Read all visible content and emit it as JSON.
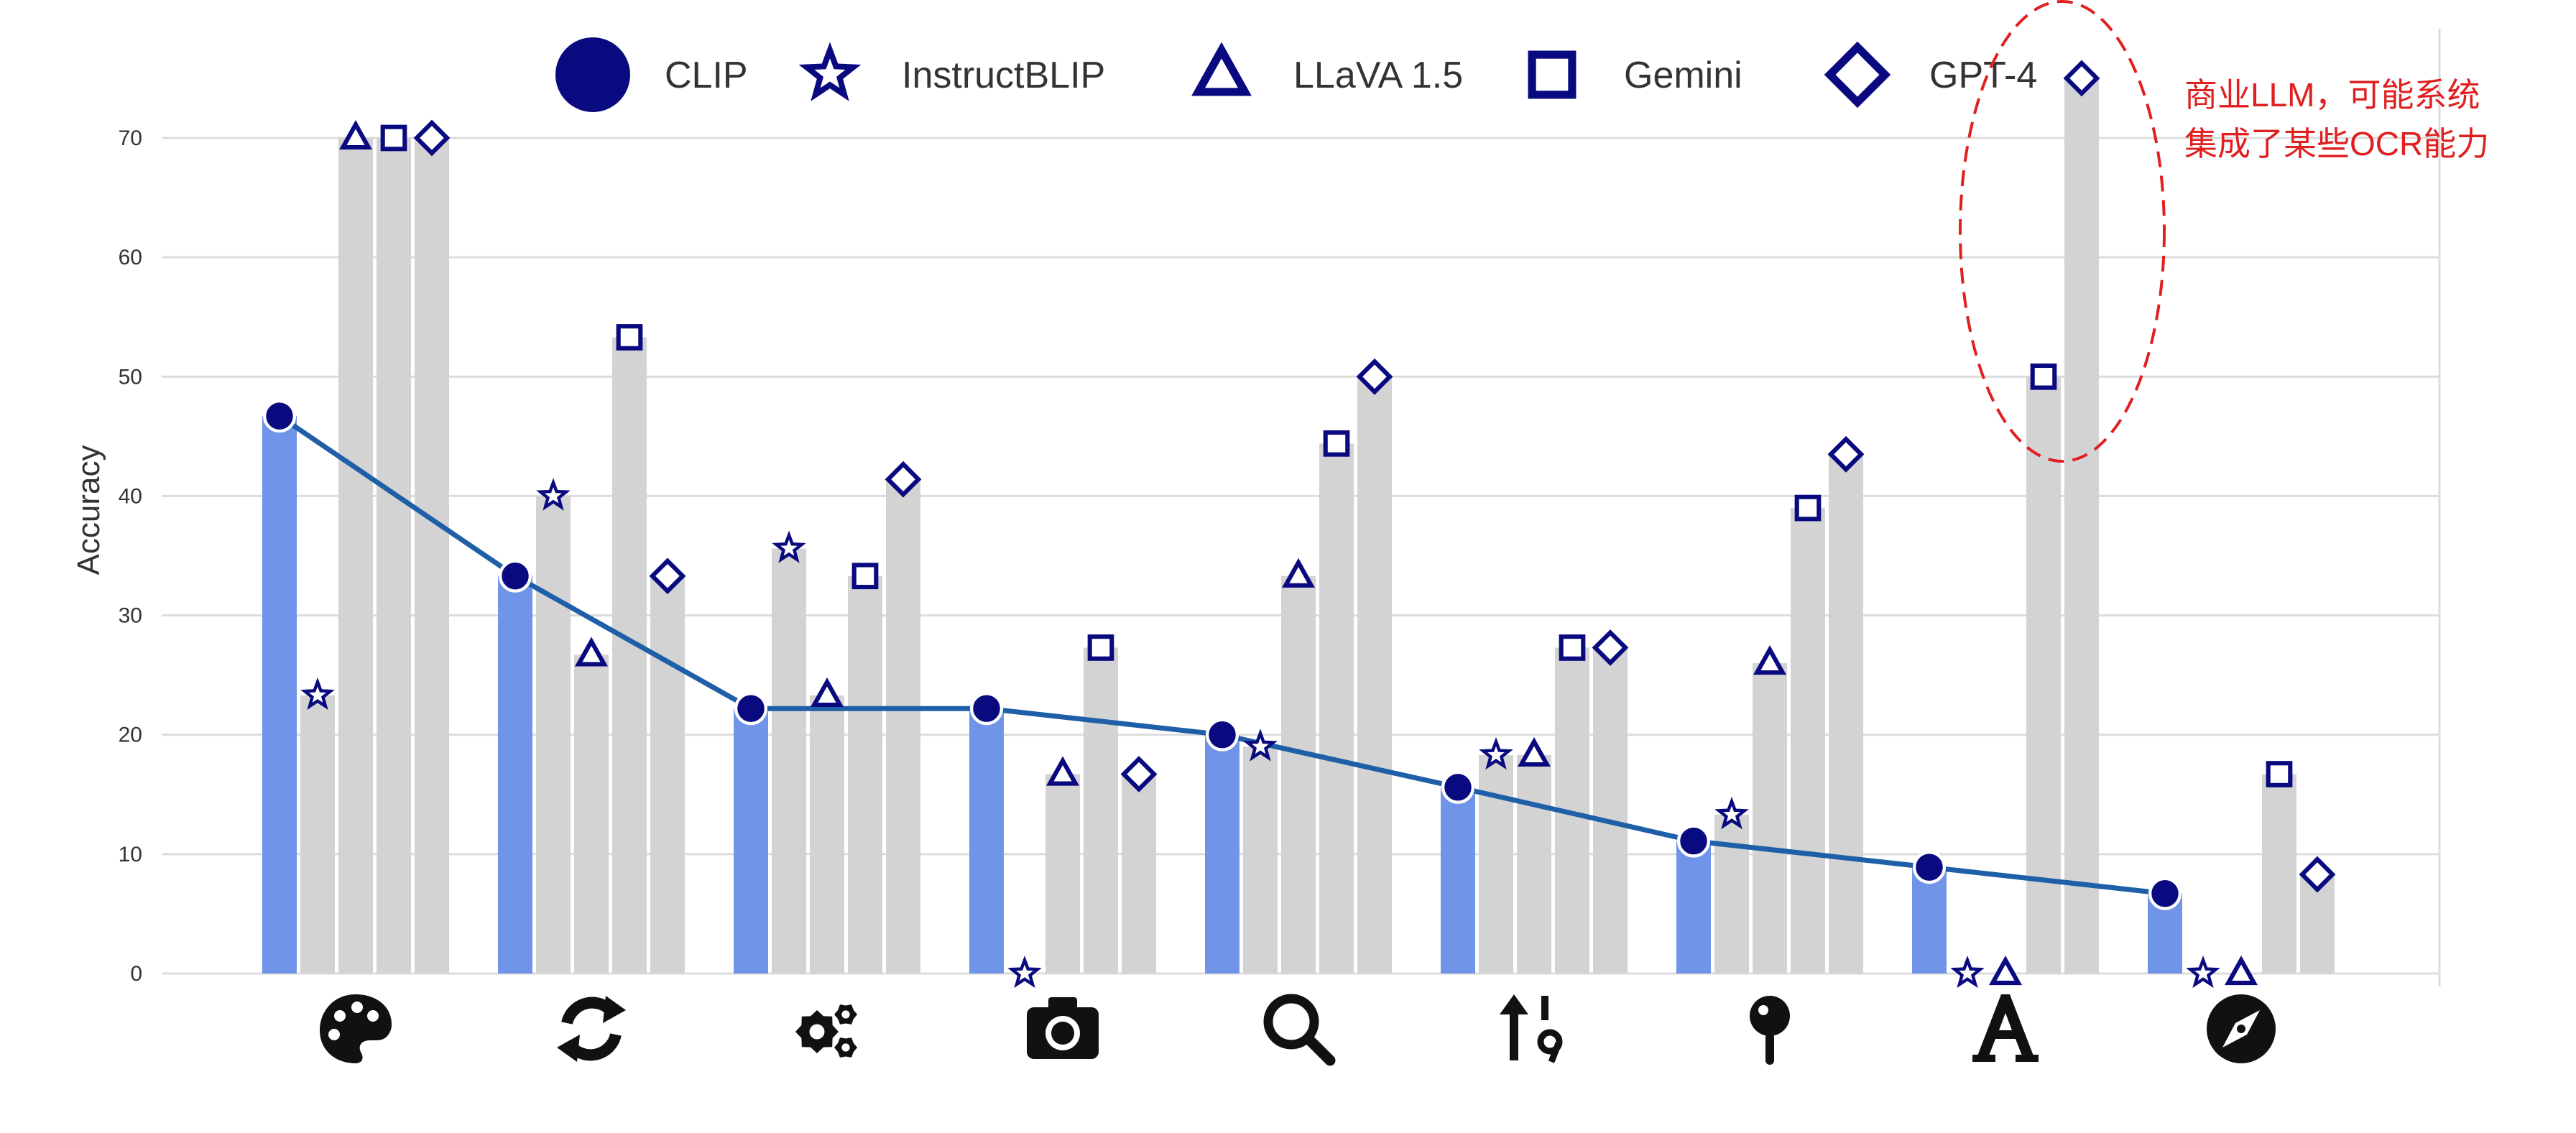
{
  "chart_data": {
    "type": "bar",
    "ylabel": "Accuracy",
    "ylim": [
      0,
      70
    ],
    "yticks": [
      0,
      10,
      20,
      30,
      40,
      50,
      60,
      70
    ],
    "grid": true,
    "legend_position": "top",
    "categories": [
      "palette-icon",
      "refresh-icon",
      "gears-icon",
      "camera-icon",
      "magnifier-icon",
      "sort-numeric-icon",
      "pin-icon",
      "font-letter-icon",
      "compass-icon"
    ],
    "series": [
      {
        "name": "CLIP",
        "marker": "circle",
        "values": [
          46.7,
          33.3,
          22.2,
          22.2,
          20.0,
          15.6,
          11.1,
          8.9,
          6.7
        ]
      },
      {
        "name": "InstructBLIP",
        "marker": "star",
        "values": [
          23.3,
          40.0,
          35.6,
          0.0,
          19.0,
          18.3,
          13.3,
          0.0,
          0.0
        ]
      },
      {
        "name": "LLaVA 1.5",
        "marker": "triangle",
        "values": [
          70.0,
          26.7,
          23.3,
          16.7,
          33.3,
          18.3,
          26.0,
          0.0,
          0.0
        ]
      },
      {
        "name": "Gemini",
        "marker": "square",
        "values": [
          70.0,
          53.3,
          33.3,
          27.3,
          44.4,
          27.3,
          39.0,
          50.0,
          16.7
        ]
      },
      {
        "name": "GPT-4",
        "marker": "diamond",
        "values": [
          70.0,
          33.3,
          41.4,
          16.7,
          50.0,
          27.3,
          43.5,
          75.0,
          8.3
        ]
      }
    ],
    "trend_line_series": "CLIP",
    "colors": {
      "clip_bar": "#7094e8",
      "other_bar": "#d3d3d3",
      "marker": "#0a0a80",
      "trend_line": "#1f5fa8",
      "grid": "#dcdcdc",
      "annotation": "#e02020"
    },
    "annotation": {
      "text_lines": [
        "商业LLM，可能系统",
        "集成了某些OCR能力"
      ]
    }
  }
}
